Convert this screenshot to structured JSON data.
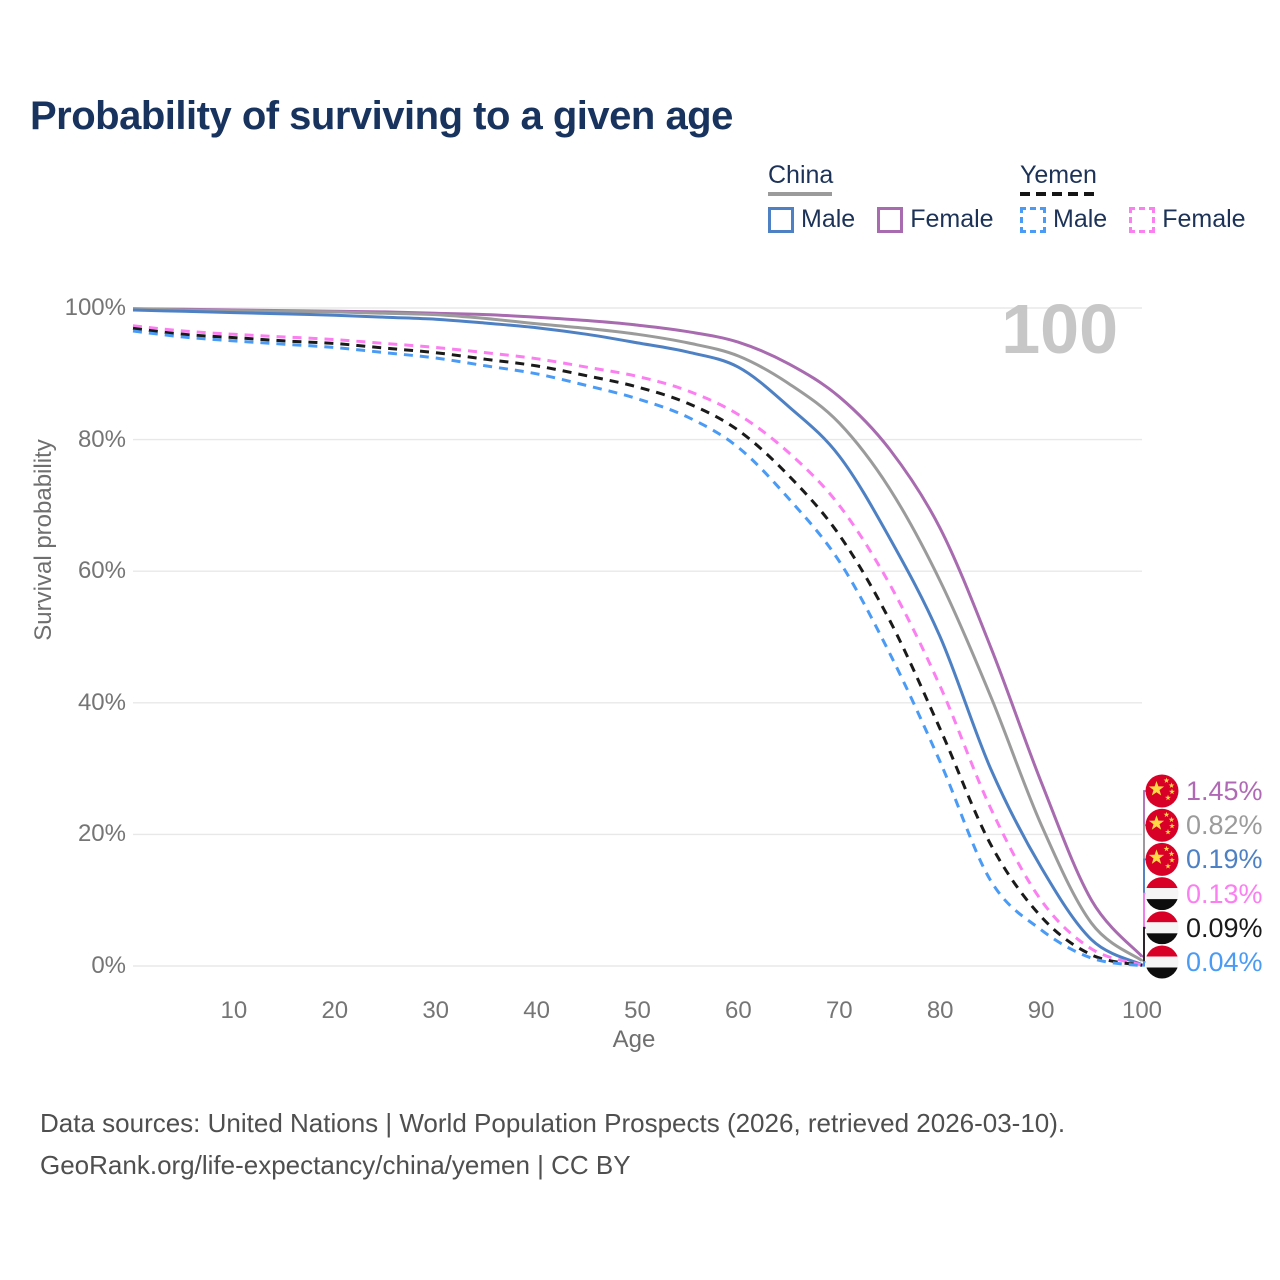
{
  "title": "Probability of surviving to a given age",
  "hover_age_indicator": "100",
  "legend": {
    "groups": [
      {
        "country": "China",
        "line_style": "solid",
        "underline_color": "#9b9b9b",
        "items": [
          {
            "label": "Male",
            "color": "#4e81c4",
            "swatch_style": "solid"
          },
          {
            "label": "Female",
            "color": "#a86bb0",
            "swatch_style": "solid"
          }
        ]
      },
      {
        "country": "Yemen",
        "line_style": "dashed",
        "underline_color": "#151515",
        "items": [
          {
            "label": "Male",
            "color": "#4a9bf5",
            "swatch_style": "dashed"
          },
          {
            "label": "Female",
            "color": "#fb7ff0",
            "swatch_style": "dashed"
          }
        ]
      }
    ]
  },
  "axes": {
    "y_label": "Survival probability",
    "x_label": "Age",
    "y_ticks": [
      {
        "value": 100,
        "label": "100%"
      },
      {
        "value": 80,
        "label": "80%"
      },
      {
        "value": 60,
        "label": "60%"
      },
      {
        "value": 40,
        "label": "40%"
      },
      {
        "value": 20,
        "label": "20%"
      },
      {
        "value": 0,
        "label": "0%"
      }
    ],
    "x_ticks": [
      {
        "value": 10,
        "label": "10"
      },
      {
        "value": 20,
        "label": "20"
      },
      {
        "value": 30,
        "label": "30"
      },
      {
        "value": 40,
        "label": "40"
      },
      {
        "value": 50,
        "label": "50"
      },
      {
        "value": 60,
        "label": "60"
      },
      {
        "value": 70,
        "label": "70"
      },
      {
        "value": 80,
        "label": "80"
      },
      {
        "value": 90,
        "label": "90"
      },
      {
        "value": 100,
        "label": "100"
      }
    ]
  },
  "chart_data": {
    "type": "line",
    "title": "Probability of surviving to a given age",
    "xlabel": "Age",
    "ylabel": "Survival probability",
    "xlim": [
      0,
      100
    ],
    "ylim": [
      0,
      100
    ],
    "grid": "horizontal",
    "x_ages": [
      0,
      5,
      10,
      15,
      20,
      25,
      30,
      35,
      40,
      45,
      50,
      55,
      60,
      65,
      70,
      75,
      80,
      85,
      90,
      95,
      100
    ],
    "series": [
      {
        "name": "China Female",
        "country": "China",
        "sex": "Female",
        "line": "solid",
        "color": "#a86bb0",
        "values": [
          99.9,
          99.8,
          99.7,
          99.6,
          99.5,
          99.4,
          99.2,
          99.0,
          98.6,
          98.1,
          97.4,
          96.4,
          94.8,
          91.5,
          86.5,
          78.5,
          66.5,
          48.5,
          28.0,
          10.0,
          1.45
        ],
        "end_value_pct": 1.45
      },
      {
        "name": "China Total",
        "country": "China",
        "sex": "Total",
        "line": "solid",
        "color": "#9b9b9b",
        "values": [
          99.9,
          99.7,
          99.6,
          99.5,
          99.4,
          99.2,
          99.0,
          98.4,
          97.6,
          96.9,
          96.0,
          94.7,
          92.7,
          88.5,
          82.5,
          72.5,
          58.5,
          41.0,
          21.5,
          6.5,
          0.82
        ],
        "end_value_pct": 0.82
      },
      {
        "name": "China Male",
        "country": "China",
        "sex": "Male",
        "line": "solid",
        "color": "#4e81c4",
        "values": [
          99.7,
          99.5,
          99.3,
          99.1,
          98.9,
          98.6,
          98.3,
          97.7,
          97.0,
          96.0,
          94.7,
          93.3,
          91.0,
          85.0,
          77.5,
          65.0,
          50.0,
          30.0,
          15.0,
          4.0,
          0.19
        ],
        "end_value_pct": 0.19
      },
      {
        "name": "Yemen Female",
        "country": "Yemen",
        "sex": "Female",
        "line": "dashed",
        "color": "#fb7ff0",
        "values": [
          97.3,
          96.5,
          96.0,
          95.6,
          95.2,
          94.6,
          94.0,
          93.2,
          92.3,
          91.0,
          89.6,
          87.4,
          83.8,
          78.0,
          70.0,
          58.0,
          42.5,
          24.0,
          10.0,
          2.6,
          0.13
        ],
        "end_value_pct": 0.13
      },
      {
        "name": "Yemen Total",
        "country": "Yemen",
        "sex": "Total",
        "line": "dashed",
        "color": "#1a1a1a",
        "values": [
          96.9,
          96.0,
          95.5,
          95.0,
          94.6,
          93.9,
          93.2,
          92.2,
          91.2,
          89.7,
          88.0,
          85.5,
          81.4,
          74.5,
          65.5,
          52.5,
          36.0,
          18.5,
          7.5,
          1.7,
          0.09
        ],
        "end_value_pct": 0.09
      },
      {
        "name": "Yemen Male",
        "country": "Yemen",
        "sex": "Male",
        "line": "dashed",
        "color": "#4a9bf5",
        "values": [
          96.5,
          95.6,
          95.0,
          94.5,
          94.0,
          93.2,
          92.4,
          91.2,
          90.0,
          88.2,
          86.2,
          83.4,
          78.8,
          71.0,
          61.5,
          47.5,
          31.0,
          13.0,
          5.5,
          1.2,
          0.04
        ],
        "end_value_pct": 0.04
      }
    ],
    "end_labels": [
      {
        "flag": "china",
        "text": "1.45%",
        "color": "#b06ab5"
      },
      {
        "flag": "china",
        "text": "0.82%",
        "color": "#9b9b9b"
      },
      {
        "flag": "china",
        "text": "0.19%",
        "color": "#4e81c4"
      },
      {
        "flag": "yemen",
        "text": "0.13%",
        "color": "#fb7ff0"
      },
      {
        "flag": "yemen",
        "text": "0.09%",
        "color": "#1a1a1a"
      },
      {
        "flag": "yemen",
        "text": "0.04%",
        "color": "#4a9bf5"
      }
    ],
    "flag_colors": {
      "china_red": "#d80027",
      "china_star_yellow": "#ffda44",
      "yemen_red": "#d80027",
      "yemen_white": "#f5f5f5",
      "yemen_black": "#0d0d0d"
    }
  },
  "footer": {
    "line1": "Data sources: United Nations | World Population Prospects (2026, retrieved 2026-03-10).",
    "line2": "GeoRank.org/life-expectancy/china/yemen | CC BY"
  }
}
